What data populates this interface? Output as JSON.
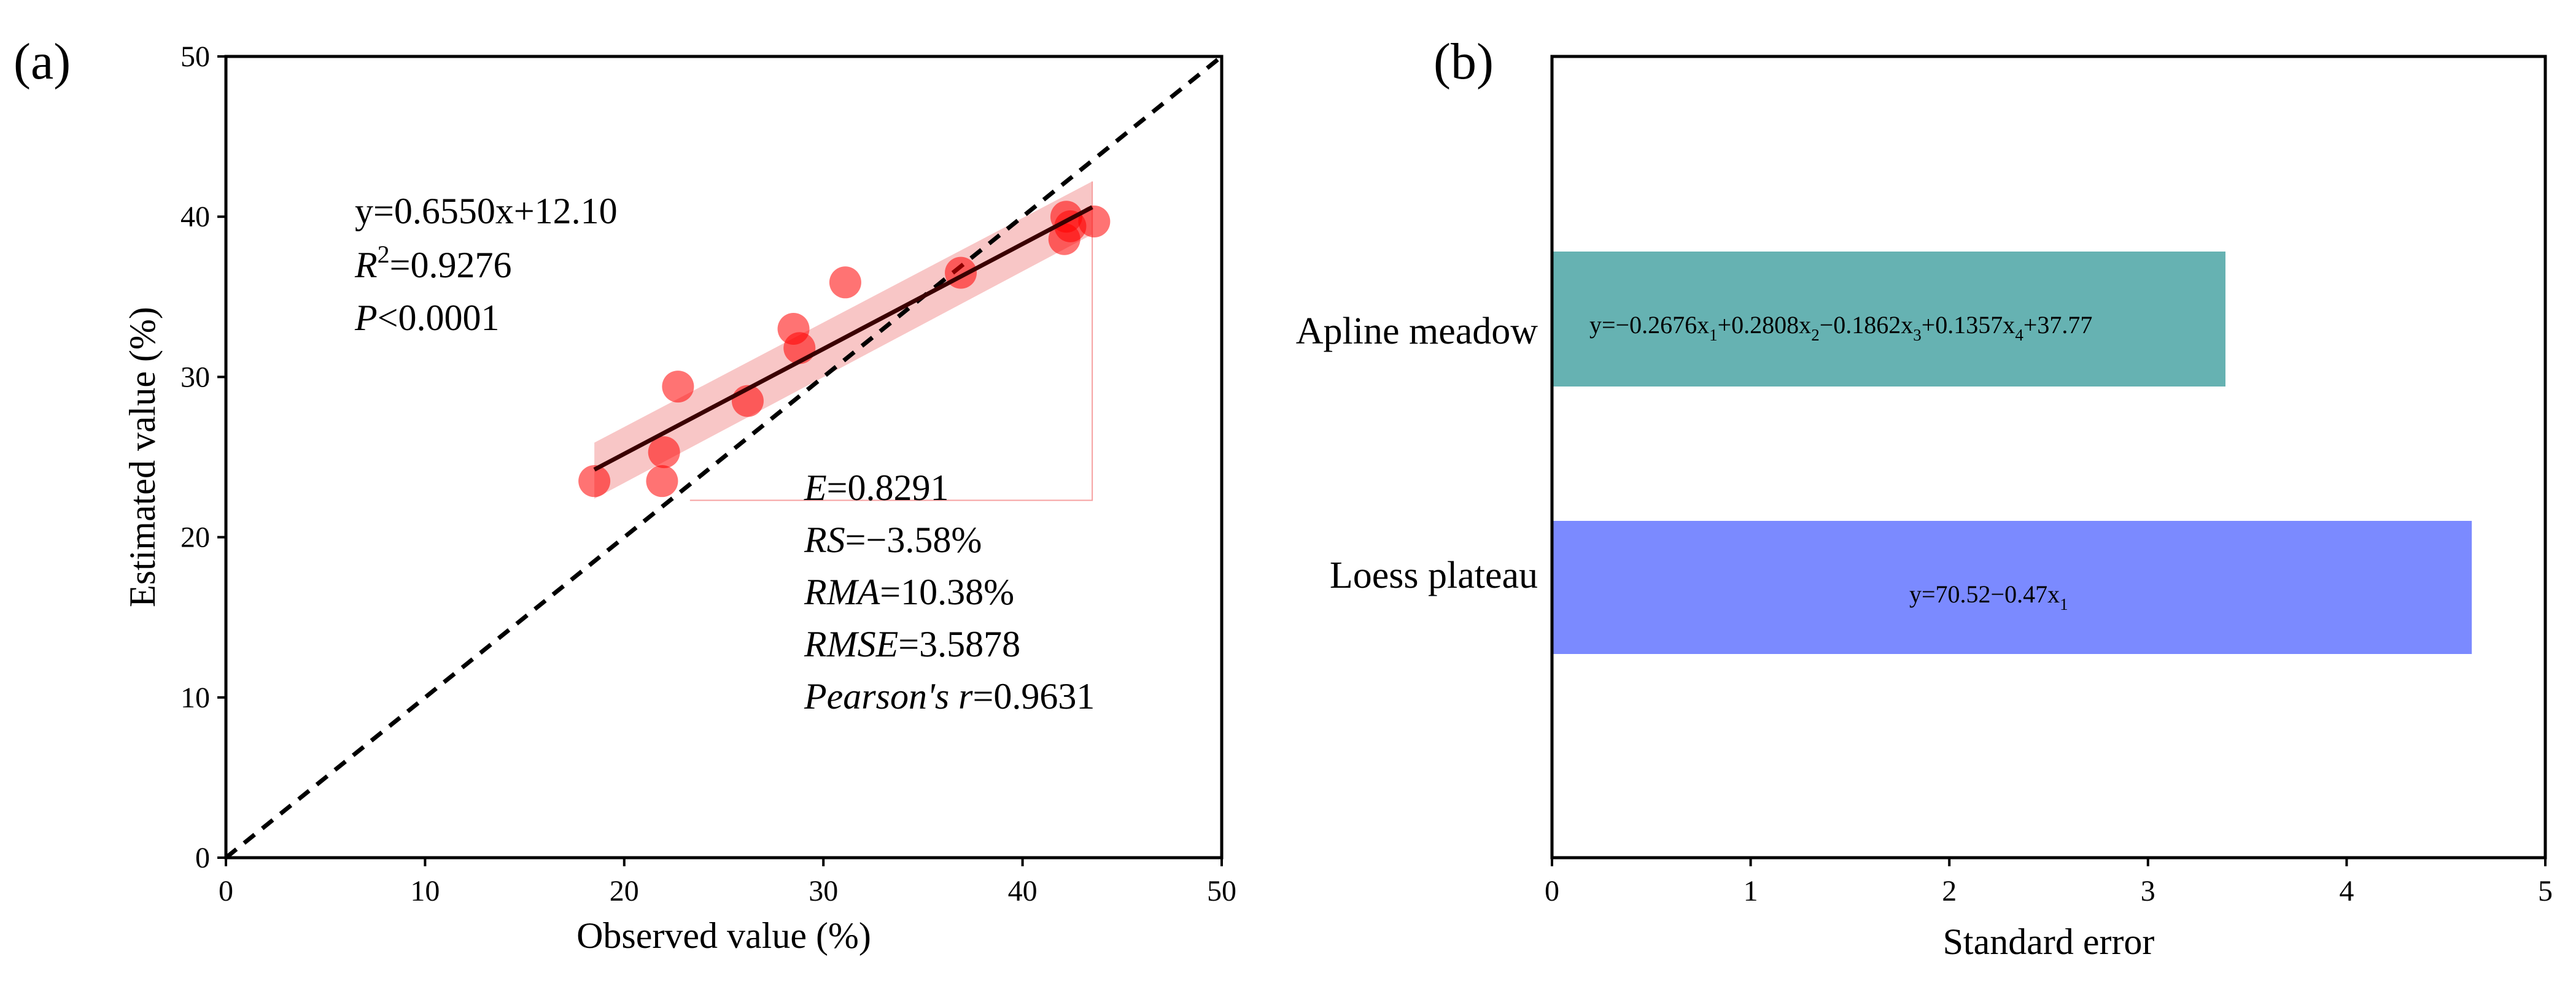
{
  "chart_data": [
    {
      "panel": "(a)",
      "type": "scatter",
      "xlabel": "Observed value (%)",
      "ylabel": "Estimated value (%)",
      "xlim": [
        0,
        50
      ],
      "ylim": [
        0,
        50
      ],
      "xticks": [
        "0",
        "10",
        "20",
        "30",
        "40",
        "50"
      ],
      "yticks": [
        "0",
        "10",
        "20",
        "30",
        "40",
        "50"
      ],
      "points": [
        {
          "x": 18.5,
          "y": 23.5
        },
        {
          "x": 21.9,
          "y": 23.5
        },
        {
          "x": 22.0,
          "y": 25.3
        },
        {
          "x": 22.7,
          "y": 29.4
        },
        {
          "x": 26.2,
          "y": 28.5
        },
        {
          "x": 28.5,
          "y": 33.0
        },
        {
          "x": 28.8,
          "y": 31.8
        },
        {
          "x": 31.1,
          "y": 35.9
        },
        {
          "x": 36.9,
          "y": 36.5
        },
        {
          "x": 42.1,
          "y": 38.6
        },
        {
          "x": 42.2,
          "y": 40.0
        },
        {
          "x": 42.4,
          "y": 39.4
        },
        {
          "x": 43.6,
          "y": 39.7
        }
      ],
      "fit": {
        "slope": 0.655,
        "intercept": 12.1,
        "x_range": [
          18.5,
          43.5
        ]
      },
      "confidence_band": {
        "x": [
          18.5,
          43.5
        ],
        "lower": [
          22.4,
          38.9
        ],
        "upper": [
          25.9,
          42.2
        ]
      },
      "reference_line": "1:1",
      "annotations": {
        "equation": "y=0.6550x+12.10",
        "r2_label": "R",
        "r2_sup": "2",
        "r2_value": "=0.9276",
        "p_label": "P",
        "p_value": "<0.0001",
        "e_label": "E",
        "e_value": "=0.8291",
        "rs_label": "RS",
        "rs_value": "=−3.58%",
        "rma_label": "RMA",
        "rma_value": "=10.38%",
        "rmse_label": "RMSE",
        "rmse_value": "=3.5878",
        "pearson_label": "Pearson's r",
        "pearson_value": "=0.9631"
      },
      "colors": {
        "points": "#ff0000",
        "band": "#f08080",
        "fit": "#3a0000",
        "ref": "#000000"
      }
    },
    {
      "panel": "(b)",
      "type": "bar",
      "orientation": "horizontal",
      "xlabel": "Standard error",
      "xlim": [
        0,
        5
      ],
      "xticks": [
        "0",
        "1",
        "2",
        "3",
        "4",
        "5"
      ],
      "categories": [
        "Apline meadow",
        "Loess plateau"
      ],
      "values": [
        3.39,
        4.63
      ],
      "bar_colors": [
        "#66b2b2",
        "#7b8aff"
      ],
      "equations": {
        "apline": {
          "p0": "y=−0.2676x",
          "s1": "1",
          "p1": "+0.2808x",
          "s2": "2",
          "p2": "−0.1862x",
          "s3": "3",
          "p3": "+0.1357x",
          "s4": "4",
          "p4": "+37.77"
        },
        "loess": {
          "p0": "y=70.52−0.47x",
          "s1": "1"
        }
      }
    }
  ]
}
